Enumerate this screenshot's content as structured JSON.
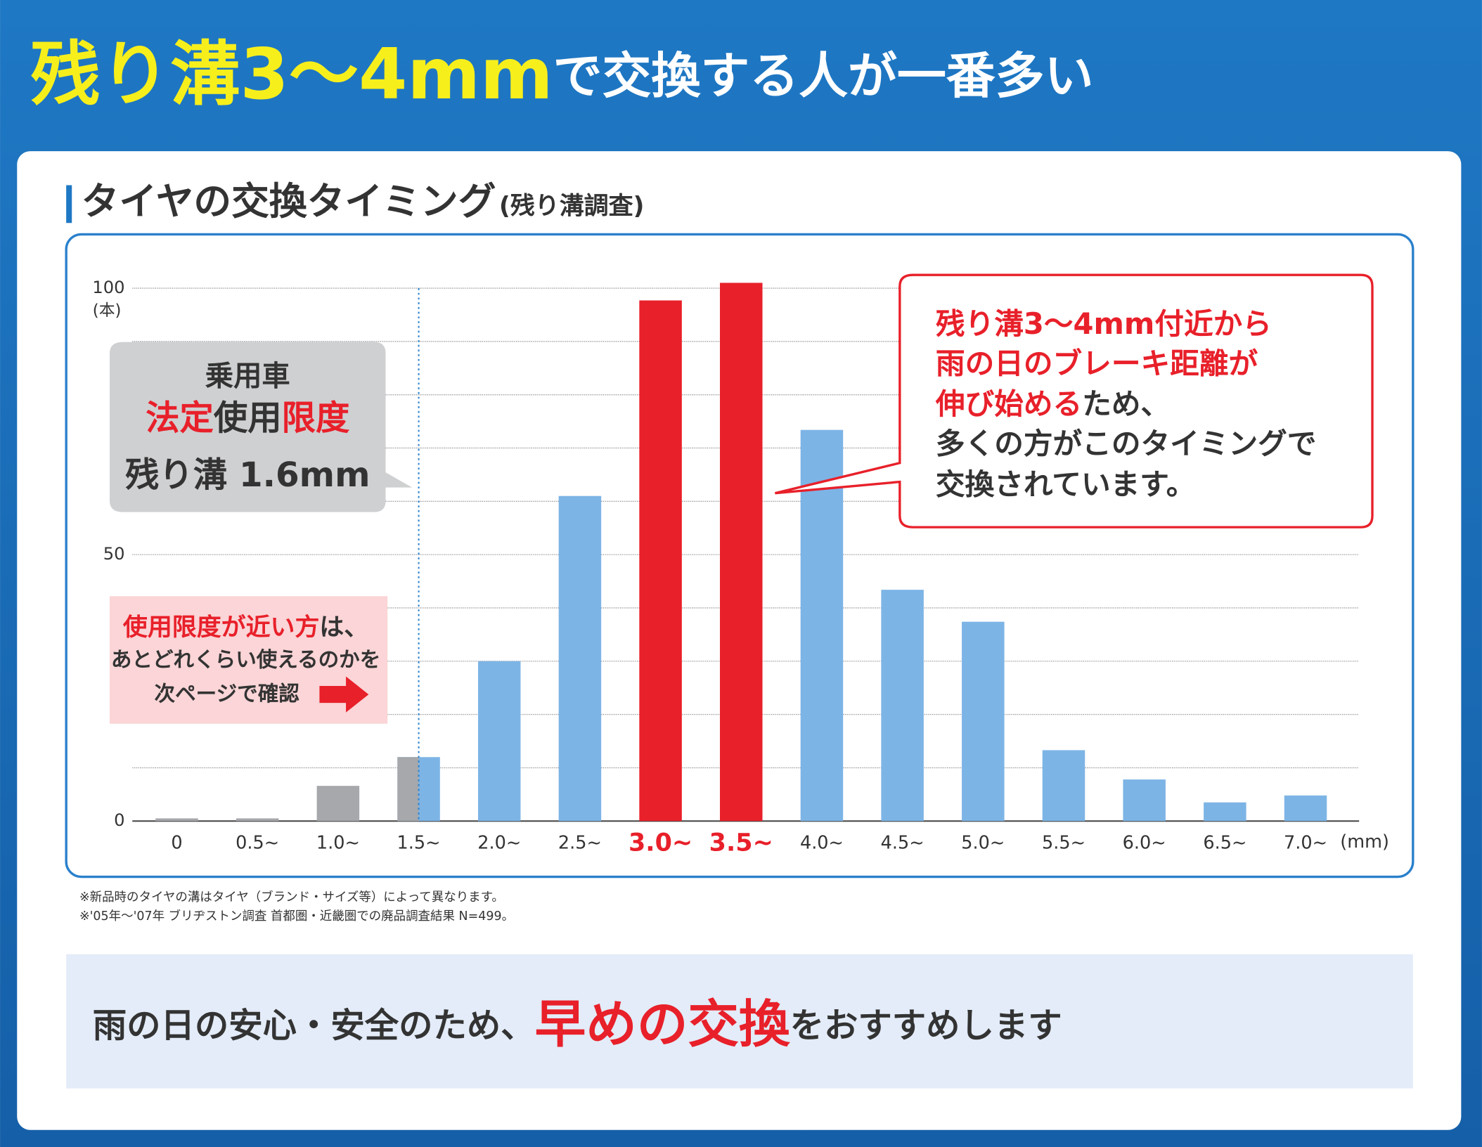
{
  "header": {
    "title": [
      {
        "text": "残り溝3〜4mm",
        "emphasis": true
      },
      {
        "text": "で交換する人が一番多い"
      }
    ]
  },
  "chart_data": {
    "type": "bar",
    "title": "タイヤの交換タイミング",
    "subtitle": "(残り溝調査)",
    "categories": [
      "0",
      "0.5~",
      "1.0~",
      "1.5~",
      "2.0~",
      "2.5~",
      "3.0~",
      "3.5~",
      "4.0~",
      "4.5~",
      "5.0~",
      "5.5~",
      "6.0~",
      "6.5~",
      "7.0~"
    ],
    "values": [
      0.5,
      0.5,
      6.6,
      12,
      30,
      61,
      97.7,
      101,
      73.4,
      43.4,
      37.4,
      13.3,
      7.8,
      3.5,
      4.8
    ],
    "colors": [
      "#a6a8ab",
      "#a6a8ab",
      "#a6a8ab",
      "#7db4e6",
      "#7db4e6",
      "#7db4e6",
      "#e8202a",
      "#e8202a",
      "#7db4e6",
      "#7db4e6",
      "#7db4e6",
      "#7db4e6",
      "#7db4e6",
      "#7db4e6",
      "#7db4e6"
    ],
    "ylim": [
      0,
      100
    ],
    "yticks": [
      0,
      50,
      100
    ],
    "minor_yticks": [
      10,
      20,
      30,
      40,
      60,
      70,
      80,
      90
    ],
    "grid": true,
    "y_unit": "(本)",
    "x_unit": "(mm)"
  },
  "limit_note": {
    "lines": [
      [
        {
          "text": "乗用車"
        }
      ],
      [
        {
          "text": "法定",
          "emphasis": true
        },
        {
          "text": "使用"
        },
        {
          "text": "限度",
          "emphasis": true
        }
      ],
      [
        {
          "text": "残り溝 1.6mm"
        }
      ]
    ]
  },
  "next_page_note": {
    "lines": [
      [
        {
          "text": "使用限度が近い方",
          "emphasis": true
        },
        {
          "text": "は、"
        }
      ],
      [
        {
          "text": "あとどれくらい使えるのかを"
        }
      ],
      [
        {
          "text": "次ページで確認"
        }
      ]
    ]
  },
  "callout": {
    "lines": [
      [
        {
          "text": "残り溝3〜4mm付近から",
          "emphasis": true
        }
      ],
      [
        {
          "text": "雨の日のブレーキ距離が",
          "emphasis": true
        }
      ],
      [
        {
          "text": "伸び始める",
          "emphasis": true
        },
        {
          "text": "ため、"
        }
      ],
      [
        {
          "text": "多くの方がこのタイミングで"
        }
      ],
      [
        {
          "text": "交換されています。"
        }
      ]
    ]
  },
  "footnotes": [
    "※新品時のタイヤの溝はタイヤ（ブランド・サイズ等）によって異なります。",
    "※'05年〜'07年 ブリヂストン調査 首都圏・近畿圏での廃品調査結果 N=499。"
  ],
  "banner": {
    "text": [
      {
        "text": "雨の日の安心・安全のため、"
      },
      {
        "text": "早めの交換",
        "emphasis": true
      },
      {
        "text": "をおすすめします"
      }
    ]
  }
}
